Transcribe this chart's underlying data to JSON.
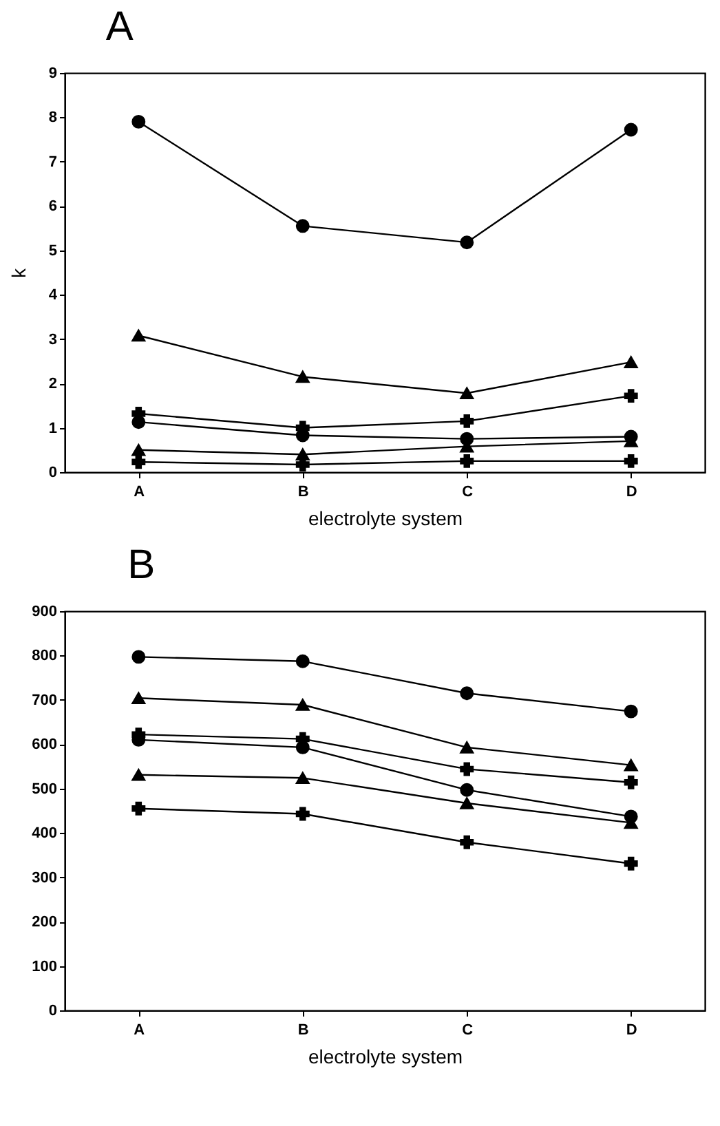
{
  "chart_data": [
    {
      "type": "line",
      "title": "A",
      "xlabel": "electrolyte system",
      "ylabel": "k",
      "categories": [
        "A",
        "B",
        "C",
        "D"
      ],
      "ylim": [
        0,
        9
      ],
      "yticks": [
        0,
        1,
        2,
        3,
        4,
        5,
        6,
        7,
        8,
        9
      ],
      "grid": false,
      "legend": false,
      "line_style": "solid",
      "series": [
        {
          "color": "#000000",
          "marker": "circle",
          "values": [
            7.9,
            5.55,
            5.18,
            7.72
          ]
        },
        {
          "color": "#000000",
          "marker": "triangle",
          "values": [
            3.08,
            2.15,
            1.78,
            2.48
          ]
        },
        {
          "color": "#000000",
          "marker": "cross",
          "values": [
            1.32,
            1.0,
            1.15,
            1.72
          ]
        },
        {
          "color": "#000000",
          "marker": "circle",
          "values": [
            1.13,
            0.83,
            0.75,
            0.8
          ]
        },
        {
          "color": "#000000",
          "marker": "triangle",
          "values": [
            0.5,
            0.4,
            0.58,
            0.7
          ]
        },
        {
          "color": "#000000",
          "marker": "cross",
          "values": [
            0.23,
            0.17,
            0.25,
            0.25
          ]
        }
      ]
    },
    {
      "type": "line",
      "title": "B",
      "xlabel": "electrolyte system",
      "categories": [
        "A",
        "B",
        "C",
        "D"
      ],
      "ylim": [
        0,
        900
      ],
      "yticks": [
        0,
        100,
        200,
        300,
        400,
        500,
        600,
        700,
        800,
        900
      ],
      "grid": false,
      "legend": false,
      "line_style": "solid",
      "series": [
        {
          "color": "#000000",
          "marker": "circle",
          "values": [
            797,
            787,
            715,
            674
          ]
        },
        {
          "color": "#000000",
          "marker": "triangle",
          "values": [
            704,
            689,
            593,
            553
          ]
        },
        {
          "color": "#000000",
          "marker": "cross",
          "values": [
            622,
            612,
            544,
            514
          ]
        },
        {
          "color": "#000000",
          "marker": "circle",
          "values": [
            610,
            593,
            497,
            437
          ]
        },
        {
          "color": "#000000",
          "marker": "triangle",
          "values": [
            531,
            524,
            467,
            423
          ]
        },
        {
          "color": "#000000",
          "marker": "cross",
          "values": [
            455,
            443,
            379,
            331
          ]
        }
      ]
    }
  ]
}
